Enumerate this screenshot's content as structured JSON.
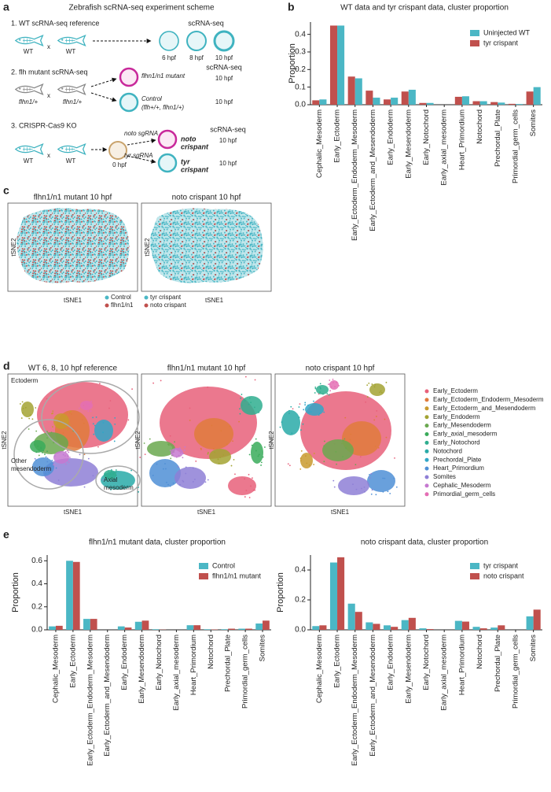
{
  "panel_labels": [
    "a",
    "b",
    "c",
    "d",
    "e"
  ],
  "scheme": {
    "title": "Zebrafish scRNA-seq experiment scheme",
    "step1": {
      "heading": "1. WT scRNA-seq reference",
      "parents": [
        "WT",
        "WT"
      ],
      "cross": "x",
      "assay": "scRNA-seq",
      "stages": [
        "6 hpf",
        "8 hpf",
        "10 hpf"
      ]
    },
    "step2": {
      "heading": "2. flh mutant scRNA-seq",
      "parents": [
        "flhn1/+",
        "flhn1/+"
      ],
      "cross": "x",
      "assay": "scRNA-seq",
      "mutant": "flhn1/n1 mutant",
      "control": [
        "Control",
        "(flh+/+, flhn1/+)"
      ],
      "stages": [
        "10 hpf",
        "10 hpf"
      ]
    },
    "step3": {
      "heading": "3. CRISPR-Cas9 KO",
      "parents": [
        "WT",
        "WT"
      ],
      "cross": "x",
      "guides": [
        "noto sgRNA",
        "tyr sgRNA"
      ],
      "injection_stage": "0 hpf",
      "crispants": [
        [
          "noto",
          "crispant"
        ],
        [
          "tyr",
          "crispant"
        ]
      ],
      "assay": "scRNA-seq",
      "stages": [
        "10 hpf",
        "10 hpf"
      ]
    }
  },
  "tsne_c": {
    "plots": [
      {
        "title": "flhn1/n1 mutant 10 hpf",
        "xlabel": "tSNE1",
        "ylabel": "tSNE2",
        "legend": [
          {
            "name": "Control",
            "color": "#4bb7c5"
          },
          {
            "name": "flhn1/n1",
            "color": "#c0504d"
          }
        ]
      },
      {
        "title": "noto crispant 10 hpf",
        "xlabel": "tSNE1",
        "ylabel": "tSNE2",
        "legend": [
          {
            "name": "tyr crispant",
            "color": "#4bb7c5"
          },
          {
            "name": "noto crispant",
            "color": "#c0504d"
          }
        ]
      }
    ]
  },
  "tsne_d": {
    "plots": [
      {
        "title": "WT 6, 8, 10 hpf reference",
        "xlabel": "tSNE1",
        "ylabel": "tSNE2",
        "annotations": [
          [
            "Ectoderm"
          ],
          [
            "Other",
            "mesendoderm"
          ],
          [
            "Axial",
            "mesoderm"
          ]
        ]
      },
      {
        "title": "flhn1/n1 mutant 10 hpf",
        "xlabel": "tSNE1",
        "ylabel": "tSNE2"
      },
      {
        "title": "noto crispant 10 hpf",
        "xlabel": "tSNE1",
        "ylabel": "tSNE2"
      }
    ],
    "legend": [
      {
        "name": "Early_Ectoderm",
        "color": "#e8607a"
      },
      {
        "name": "Early_Ectoderm_Endoderm_Mesoderm",
        "color": "#e07b3c"
      },
      {
        "name": "Early_Ectoderm_and_Mesendoderm",
        "color": "#c99a2e"
      },
      {
        "name": "Early_Endoderm",
        "color": "#a3a332"
      },
      {
        "name": "Early_Mesendoderm",
        "color": "#6aa84f"
      },
      {
        "name": "Early_axial_mesoderm",
        "color": "#3aab5a"
      },
      {
        "name": "Early_Notochord",
        "color": "#2fae8f"
      },
      {
        "name": "Notochord",
        "color": "#29aaa8"
      },
      {
        "name": "Prechordal_Plate",
        "color": "#31a6c7"
      },
      {
        "name": "Heart_Primordium",
        "color": "#4f8fd6"
      },
      {
        "name": "Somites",
        "color": "#8e7fd6"
      },
      {
        "name": "Cephalic_Mesoderm",
        "color": "#c578d0"
      },
      {
        "name": "Primordial_germ_cells",
        "color": "#e46eb4"
      }
    ]
  },
  "chart_data": [
    {
      "type": "bar",
      "title": "WT data and tyr crispant data, cluster proportion",
      "ylabel": "Proportion",
      "categories": [
        "Cephalic_Mesoderm",
        "Early_Ectoderm",
        "Early_Ectoderm_Endoderm_Mesoderm",
        "Early_Ectoderm_and_Mesendoderm",
        "Early_Endoderm",
        "Early_Mesendoderm",
        "Early_Notochord",
        "Early_axial_mesoderm",
        "Heart_Primordium",
        "Notochord",
        "Prechordal_Plate",
        "Primordial_germ_cells",
        "Somites"
      ],
      "series": [
        {
          "name": "tyr crispant",
          "color": "#c0504d",
          "values": [
            0.025,
            0.45,
            0.16,
            0.08,
            0.03,
            0.075,
            0.01,
            0,
            0.045,
            0.02,
            0.015,
            0.005,
            0.075
          ]
        },
        {
          "name": "Uninjected WT",
          "color": "#4bb7c5",
          "values": [
            0.03,
            0.45,
            0.15,
            0.04,
            0.04,
            0.085,
            0.01,
            0,
            0.048,
            0.02,
            0.012,
            0.004,
            0.1
          ]
        }
      ],
      "legend_order": [
        1,
        0
      ],
      "legend": "upper right",
      "ylim": [
        0,
        0.47
      ],
      "yticks": [
        {
          "value": 0,
          "label": "0.0"
        },
        0.1,
        0.2,
        0.3,
        0.4
      ]
    },
    {
      "type": "bar",
      "title": "flhn1/n1 mutant data, cluster proportion",
      "ylabel": "Proportion",
      "categories": [
        "Cephalic_Mesoderm",
        "Early_Ectoderm",
        "Early_Ectoderm_Endoderm_Mesoderm",
        "Early_Ectoderm_and_Mesendoderm",
        "Early_Endoderm",
        "Early_Mesendoderm",
        "Early_Notochord",
        "Early_axial_mesoderm",
        "Heart_Primordium",
        "Notochord",
        "Prechordal_Plate",
        "Primordial_germ_cells",
        "Somites"
      ],
      "series": [
        {
          "name": "Control",
          "color": "#4bb7c5",
          "values": [
            0.03,
            0.6,
            0.095,
            0,
            0.03,
            0.07,
            0.005,
            0,
            0.04,
            0.005,
            0.005,
            0.01,
            0.055
          ]
        },
        {
          "name": "flhn1/n1 mutant",
          "color": "#c0504d",
          "values": [
            0.035,
            0.59,
            0.095,
            0,
            0.02,
            0.08,
            0.002,
            0,
            0.04,
            0.003,
            0.01,
            0.01,
            0.08
          ]
        }
      ],
      "legend_order": [
        0,
        1
      ],
      "legend": "upper right",
      "ylim": [
        0,
        0.65
      ],
      "yticks": [
        {
          "value": 0,
          "label": "0.0"
        },
        0.2,
        0.4,
        0.6
      ]
    },
    {
      "type": "bar",
      "title": "noto crispant data, cluster proportion",
      "ylabel": "Proportion",
      "categories": [
        "Cephalic_Mesoderm",
        "Early_Ectoderm",
        "Early_Ectoderm_Endoderm_Mesoderm",
        "Early_Ectoderm_and_Mesendoderm",
        "Early_Endoderm",
        "Early_Mesendoderm",
        "Early_Notochord",
        "Early_axial_mesoderm",
        "Heart_Primordium",
        "Notochord",
        "Prechordal_Plate",
        "Primordial_germ_cells",
        "Somites"
      ],
      "series": [
        {
          "name": "tyr crispant",
          "color": "#4bb7c5",
          "values": [
            0.025,
            0.45,
            0.175,
            0.05,
            0.03,
            0.065,
            0.01,
            0,
            0.06,
            0.02,
            0.015,
            0,
            0.09
          ]
        },
        {
          "name": "noto crispant",
          "color": "#c0504d",
          "values": [
            0.03,
            0.485,
            0.12,
            0.04,
            0.02,
            0.08,
            0.005,
            0,
            0.055,
            0.01,
            0.03,
            0,
            0.135
          ]
        }
      ],
      "legend_order": [
        0,
        1
      ],
      "legend": "upper right",
      "ylim": [
        0,
        0.5
      ],
      "yticks": [
        {
          "value": 0,
          "label": "0.0"
        },
        0.2,
        0.4
      ]
    }
  ]
}
